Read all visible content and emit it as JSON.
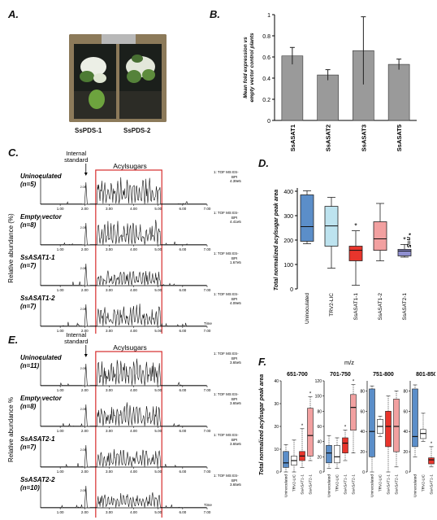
{
  "panel_labels": {
    "a": "A.",
    "b": "B.",
    "c": "C.",
    "d": "D.",
    "e": "E.",
    "f": "F."
  },
  "panel_a": {
    "plant_labels": [
      "SsPDS-1",
      "SsPDS-2"
    ]
  },
  "colors": {
    "bar_gray": "#9a9a9a",
    "red_box": "#d62d2d",
    "blue": "#5b8ec9",
    "light_blue": "#bde3ef",
    "red": "#e8352c",
    "pink": "#f2a0a0",
    "lavender": "#8f8fcf"
  },
  "chart_data": [
    {
      "type": "bar",
      "panel": "B",
      "categories": [
        "SsASAT1",
        "SsASAT2",
        "SsASAT3",
        "SsASAT5"
      ],
      "values": [
        0.61,
        0.43,
        0.66,
        0.53
      ],
      "errors": [
        0.08,
        0.05,
        0.32,
        0.05
      ],
      "ylabel": "Mean fold expression vs empty vector control plants",
      "ylim": [
        0,
        1
      ],
      "yticks": [
        "0",
        "0.2",
        "0.4",
        "0.6",
        "0.8",
        "1"
      ]
    },
    {
      "type": "box",
      "panel": "D",
      "ylabel": "Total normalized acylsugar peak area",
      "ylim": [
        0,
        400
      ],
      "yticks": [
        "0",
        "100",
        "200",
        "300",
        "400"
      ],
      "annotation": "* n=5",
      "groups": [
        {
          "name": "Uninoculated",
          "color": "#5b8ec9",
          "min": 185,
          "q1": 195,
          "median": 255,
          "q3": 385,
          "max": 402,
          "star": false
        },
        {
          "name": "TRV2-LIC",
          "color": "#bde3ef",
          "min": 85,
          "q1": 175,
          "median": 258,
          "q3": 338,
          "max": 375,
          "star": false
        },
        {
          "name": "SsASAT1-1",
          "color": "#e8352c",
          "min": 15,
          "q1": 115,
          "median": 158,
          "q3": 175,
          "max": 238,
          "star": true
        },
        {
          "name": "SsASAT1-2",
          "color": "#f2a0a0",
          "min": 115,
          "q1": 158,
          "median": 205,
          "q3": 275,
          "max": 350,
          "star": false
        },
        {
          "name": "SsASAT2-1",
          "color": "#8f8fcf",
          "min": 130,
          "q1": 135,
          "median": 155,
          "q3": 162,
          "max": 182,
          "star": true
        }
      ]
    },
    {
      "type": "box",
      "panel": "F",
      "title": "m/z",
      "ylabel": "Total normalized acylsugar peak area",
      "categories": [
        "Uninoculated",
        "TRV2-LIC",
        "SsASAT1-1",
        "SsASAT2-1"
      ],
      "subplots": [
        {
          "title": "651-700",
          "yticks": [
            "0",
            "10",
            "20",
            "30",
            "40"
          ],
          "ymax": 40,
          "boxes": [
            [
              0,
              2,
              4,
              9,
              12
            ],
            [
              0,
              3,
              5,
              7,
              14
            ],
            [
              2,
              5,
              7,
              9,
              19
            ],
            [
              5,
              7,
              16,
              28,
              33
            ]
          ],
          "stars": [
            false,
            false,
            true,
            true
          ]
        },
        {
          "title": "701-750",
          "yticks": [
            "0",
            "20",
            "40",
            "60",
            "80",
            "100",
            "120"
          ],
          "ymax": 120,
          "boxes": [
            [
              5,
              12,
              25,
              35,
              48
            ],
            [
              5,
              12,
              20,
              35,
              45
            ],
            [
              15,
              25,
              38,
              45,
              55
            ],
            [
              25,
              55,
              85,
              102,
              115
            ]
          ],
          "stars": [
            false,
            false,
            true,
            true
          ]
        },
        {
          "title": "751-800",
          "yticks": [
            "0",
            "20",
            "40",
            "60",
            "80"
          ],
          "ymax": 90,
          "boxes": [
            [
              0,
              15,
              40,
              82,
              85
            ],
            [
              35,
              38,
              45,
              52,
              55
            ],
            [
              0,
              25,
              45,
              60,
              75
            ],
            [
              5,
              20,
              45,
              72,
              80
            ]
          ],
          "stars": [
            false,
            false,
            false,
            false
          ]
        },
        {
          "title": "801-850",
          "yticks": [
            "0",
            "20",
            "40",
            "60",
            "80"
          ],
          "ymax": 90,
          "boxes": [
            [
              15,
              25,
              35,
              82,
              86
            ],
            [
              30,
              33,
              38,
              42,
              58
            ],
            [
              5,
              8,
              12,
              14,
              25
            ],
            [
              8,
              12,
              18,
              28,
              35
            ]
          ],
          "stars": [
            false,
            false,
            true,
            true
          ]
        }
      ]
    }
  ],
  "panel_c": {
    "internal_standard": "Internal standard",
    "acylsugars": "Acylsugars",
    "ylabel": "Relative abundance (%)",
    "xticks": [
      "1.00",
      "2.00",
      "3.00",
      "4.00",
      "5.00",
      "6.00",
      "7.00"
    ],
    "time_label": "Time",
    "traces": [
      {
        "name": "Uninoculated",
        "n": "(n=5)",
        "info1": "1: TOF MS ES-",
        "info2": "BPI",
        "info3": "4.39e5",
        "peak": "2.08"
      },
      {
        "name": "Empty vector",
        "n": "(n=8)",
        "info1": "1: TOF MS ES-",
        "info2": "BPI",
        "info3": "4.41e5",
        "peak": "2.05"
      },
      {
        "name": "SsASAT1-1",
        "n": "(n=7)",
        "info1": "1: TOF MS ES-",
        "info2": "BPI",
        "info3": "1.67e5",
        "peak": "2.08"
      },
      {
        "name": "SsASAT1-2",
        "n": "(n=7)",
        "info1": "1: TOF MS ES-",
        "info2": "BPI",
        "info3": "4.09e5",
        "peak": "2.08"
      }
    ]
  },
  "panel_e": {
    "internal_standard": "Internal standard",
    "acylsugars": "Acylsugars",
    "ylabel": "Relative abundance %",
    "xticks": [
      "1.00",
      "2.00",
      "3.00",
      "4.00",
      "5.00",
      "6.00",
      "7.00"
    ],
    "time_label": "Time",
    "traces": [
      {
        "name": "Uninoculated",
        "n": "(n=11)",
        "info1": "1: TOF MS ES-",
        "info2": "BPI",
        "info3": "3.65e5",
        "peak": "2.05"
      },
      {
        "name": "Empty vector",
        "n": "(n=8)",
        "info1": "1: TOF MS ES-",
        "info2": "BPI",
        "info3": "3.65e5",
        "peak": "2.05"
      },
      {
        "name": "SsASAT2-1",
        "n": "(n=7)",
        "info1": "1: TOF MS ES-",
        "info2": "BPI",
        "info3": "3.65e5",
        "peak": "2.05"
      },
      {
        "name": "SsASAT2-2",
        "n": "(n=10)",
        "info1": "1: TOF MS ES-",
        "info2": "BPI",
        "info3": "3.65e5",
        "peak": "2.05"
      }
    ]
  }
}
